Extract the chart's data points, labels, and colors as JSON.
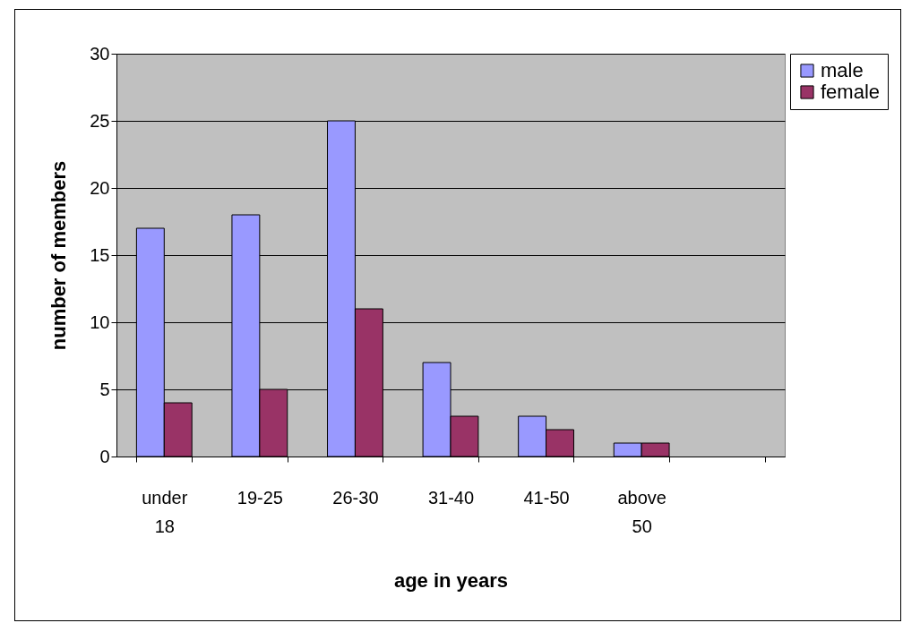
{
  "chart_data": {
    "type": "bar",
    "xlabel": "age in years",
    "ylabel": "number of members",
    "categories": [
      "under 18",
      "19-25",
      "26-30",
      "31-40",
      "41-50",
      "above 50",
      null
    ],
    "series": [
      {
        "name": "male",
        "color": "#9999ff",
        "values": [
          17,
          18,
          25,
          7,
          3,
          1,
          null
        ]
      },
      {
        "name": "female",
        "color": "#993366",
        "values": [
          4,
          5,
          11,
          3,
          2,
          1,
          null
        ]
      }
    ],
    "ylim": [
      0,
      30
    ],
    "yticks": [
      0,
      5,
      10,
      15,
      20,
      25,
      30
    ],
    "grid": "y",
    "legend": "right"
  }
}
